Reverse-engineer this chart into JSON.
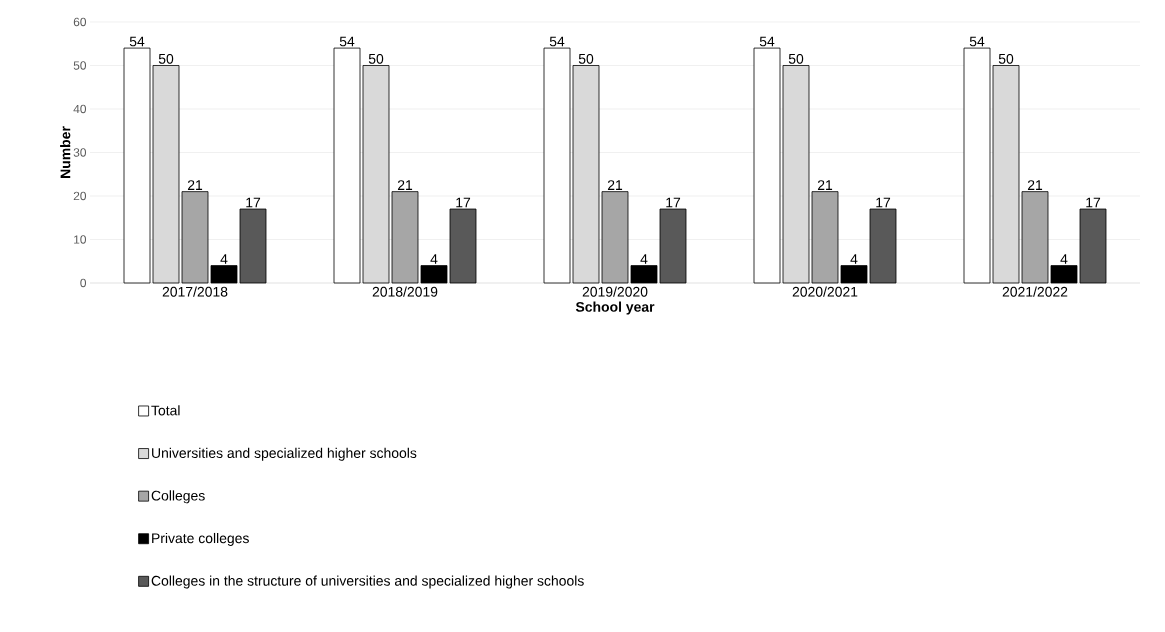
{
  "chart_data": {
    "type": "bar",
    "xlabel": "School year",
    "ylabel": "Number",
    "categories": [
      "2017/2018",
      "2018/2019",
      "2019/2020",
      "2020/2021",
      "2021/2022"
    ],
    "series": [
      {
        "name": "Total",
        "color": "#ffffff",
        "values": [
          54,
          54,
          54,
          54,
          54
        ]
      },
      {
        "name": "Universities and specialized higher schools",
        "color": "#d9d9d9",
        "values": [
          50,
          50,
          50,
          50,
          50
        ]
      },
      {
        "name": "Colleges",
        "color": "#a6a6a6",
        "values": [
          21,
          21,
          21,
          21,
          21
        ]
      },
      {
        "name": "Private colleges",
        "color": "#000000",
        "values": [
          4,
          4,
          4,
          4,
          4
        ]
      },
      {
        "name": "Colleges in the structure of universities and specialized higher schools",
        "color": "#595959",
        "values": [
          17,
          17,
          17,
          17,
          17
        ]
      }
    ],
    "ylim": [
      0,
      60
    ],
    "yticks": [
      0,
      10,
      20,
      30,
      40,
      50,
      60
    ],
    "grid": "y",
    "legend": "bottom",
    "data_labels": true
  }
}
